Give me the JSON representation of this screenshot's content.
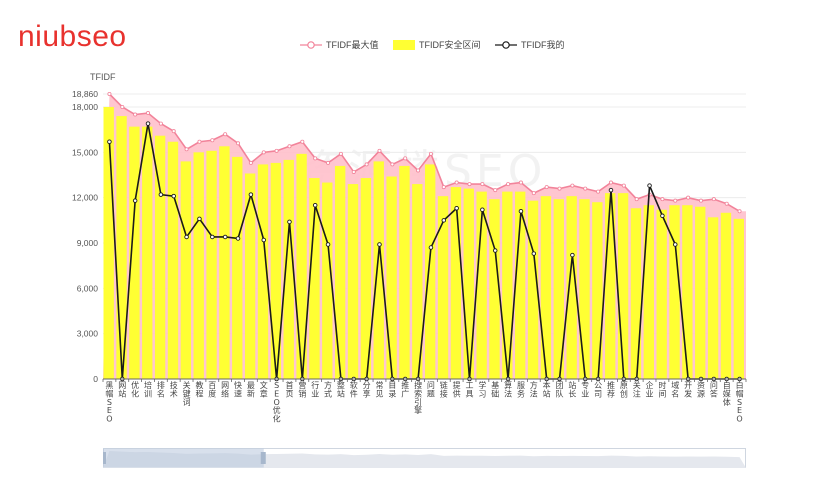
{
  "brand": {
    "logo_text": "niubseo"
  },
  "watermark": {
    "text": "资源楼SEO"
  },
  "colors": {
    "max": "#f2839a",
    "safe": "#ffff33",
    "safe_max_fill": "#ffc0cb",
    "mine": "#1a1a1a",
    "axis": "#666666",
    "grid": "#ececec"
  },
  "chart_data": {
    "type": "bar",
    "title": "",
    "ylabel": "TFIDF",
    "xlabel": "",
    "ylim": [
      0,
      18860
    ],
    "yticks": [
      "0",
      "3,000",
      "6,000",
      "9,000",
      "12,000",
      "15,000",
      "18,000",
      "18,860"
    ],
    "ytick_values": [
      0,
      3000,
      6000,
      9000,
      12000,
      15000,
      18000,
      18860
    ],
    "legend_position": "top-center",
    "grid": true,
    "categories": [
      "黑帽SEO",
      "网站",
      "优化",
      "培训",
      "排名",
      "技术",
      "关键词",
      "教程",
      "百度",
      "网络",
      "快速",
      "最新",
      "文章",
      "SEO优化",
      "首页",
      "营销",
      "行业",
      "方式",
      "整站",
      "软件",
      "分享",
      "常见",
      "目录",
      "推广",
      "搜索引擎",
      "问题",
      "链接",
      "提供",
      "工具",
      "学习",
      "基础",
      "算法",
      "服务",
      "方法",
      "本站",
      "团队",
      "站长",
      "专业",
      "公司",
      "推荐",
      "原创",
      "关注",
      "企业",
      "时间",
      "域名",
      "开发",
      "资源",
      "问答",
      "自媒体",
      "白帽SEO"
    ],
    "series": [
      {
        "name": "TFIDF最大值",
        "kind": "area-line",
        "values": [
          18860,
          18000,
          17500,
          17600,
          16900,
          16400,
          15200,
          15700,
          15800,
          16200,
          15600,
          14300,
          15000,
          15100,
          15400,
          15700,
          14600,
          14300,
          14900,
          13700,
          14200,
          15100,
          14200,
          14600,
          13800,
          14900,
          12700,
          13000,
          12900,
          12900,
          12500,
          12900,
          13000,
          12300,
          12700,
          12600,
          12800,
          12600,
          12400,
          13000,
          12800,
          11900,
          12200,
          11900,
          11800,
          12000,
          11800,
          11900,
          11600,
          11100
        ]
      },
      {
        "name": "TFIDF安全区间",
        "kind": "bar",
        "values": [
          18000,
          17400,
          16700,
          16700,
          16100,
          15700,
          14400,
          15000,
          15100,
          15400,
          14700,
          13600,
          14200,
          14300,
          14500,
          14900,
          13300,
          13000,
          14100,
          12900,
          13300,
          14400,
          13400,
          14100,
          12900,
          14200,
          12100,
          12700,
          12600,
          12400,
          11900,
          12400,
          12400,
          11800,
          12100,
          11900,
          12100,
          11900,
          11700,
          12300,
          12300,
          11300,
          11500,
          11200,
          11500,
          11500,
          11400,
          10700,
          11000,
          10600
        ]
      },
      {
        "name": "TFIDF我的",
        "kind": "line",
        "values": [
          15700,
          0,
          11800,
          16900,
          12200,
          12100,
          9400,
          10600,
          9400,
          9400,
          9300,
          12200,
          9200,
          0,
          10400,
          0,
          11500,
          8900,
          0,
          0,
          0,
          8900,
          0,
          0,
          0,
          8700,
          10500,
          11300,
          0,
          11200,
          8500,
          0,
          11100,
          8300,
          0,
          0,
          8200,
          0,
          0,
          12500,
          0,
          0,
          12800,
          10800,
          8900,
          0,
          0,
          0,
          0,
          0
        ]
      }
    ]
  },
  "zoom": {
    "start": 0,
    "end": 0.25
  }
}
